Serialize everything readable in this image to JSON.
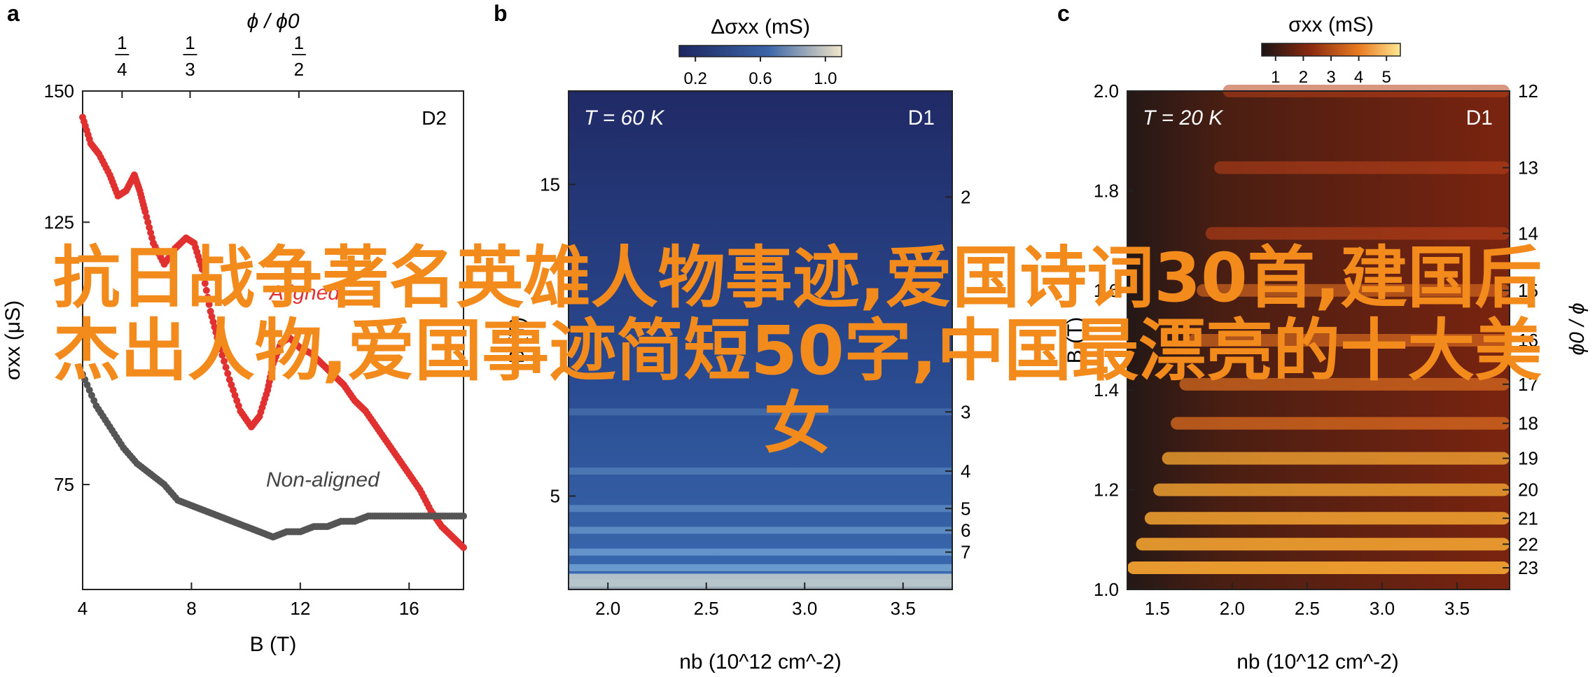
{
  "overlay": {
    "line1": "抗日战争著名英雄人物事迹,爱国诗词30首,建国后",
    "line2": "杰出人物,爱国事迹简短50字,中国最漂亮的十大美",
    "line3": "女"
  },
  "chart_data": [
    {
      "panel": "a",
      "type": "scatter",
      "title": "",
      "corner_label": "D2",
      "xlabel": "B (T)",
      "ylabel": "σxx (μS)",
      "top_axis_label": "ϕ / ϕ0",
      "top_ticks": [
        {
          "at_B": 5.45,
          "num": "1",
          "den": "4"
        },
        {
          "at_B": 7.95,
          "num": "1",
          "den": "3"
        },
        {
          "at_B": 11.95,
          "num": "1",
          "den": "2"
        }
      ],
      "xlim": [
        4,
        18
      ],
      "ylim": [
        55,
        150
      ],
      "xticks": [
        4,
        8,
        12,
        16
      ],
      "yticks": [
        75,
        125,
        150
      ],
      "series": [
        {
          "name": "Aligned",
          "color": "#e03030",
          "x": [
            4.0,
            4.3,
            4.6,
            5.0,
            5.3,
            5.6,
            5.9,
            6.1,
            6.3,
            6.6,
            7.0,
            7.4,
            7.8,
            8.1,
            8.4,
            8.7,
            9.0,
            9.4,
            9.8,
            10.2,
            10.5,
            10.8,
            11.0,
            11.3,
            11.6,
            12.0,
            12.4,
            12.8,
            13.2,
            13.6,
            14.0,
            14.4,
            14.8,
            15.2,
            15.6,
            16.0,
            16.4,
            16.8,
            17.2,
            17.6,
            18.0
          ],
          "y": [
            145,
            140,
            138,
            134,
            130,
            131,
            134,
            131,
            127,
            121,
            117,
            120,
            122,
            121,
            116,
            108,
            102,
            95,
            89,
            86,
            88,
            93,
            98,
            102,
            103,
            101,
            100,
            98,
            96,
            94,
            91,
            89,
            86,
            83,
            80,
            77,
            74,
            70,
            67,
            65,
            63
          ]
        },
        {
          "name": "Non-aligned",
          "color": "#555555",
          "x": [
            4.0,
            4.5,
            5.0,
            5.5,
            6.0,
            6.5,
            7.0,
            7.5,
            8.0,
            8.5,
            9.0,
            9.5,
            10.0,
            10.5,
            11.0,
            11.5,
            12.0,
            12.5,
            13.0,
            13.5,
            14.0,
            14.5,
            15.0,
            15.5,
            16.0,
            16.5,
            17.0,
            17.5,
            18.0
          ],
          "y": [
            96,
            90,
            86,
            82,
            79,
            77,
            75,
            72,
            71,
            70,
            69,
            68,
            67,
            66,
            65,
            66,
            66,
            67,
            67,
            68,
            68,
            69,
            69,
            69,
            69,
            69,
            69,
            69,
            69
          ]
        }
      ]
    },
    {
      "panel": "b",
      "type": "heatmap",
      "corner_label_left": "T = 60 K",
      "corner_label_right": "D1",
      "xlabel": "nb (10^12 cm^-2)",
      "ylabel": "B (T)",
      "xlim": [
        1.8,
        3.75
      ],
      "ylim": [
        2,
        18
      ],
      "xticks": [
        2.0,
        2.5,
        3.0,
        3.5
      ],
      "yticks": [
        5,
        15
      ],
      "right_ticks": [
        {
          "label": "2",
          "at_B": 14.6
        },
        {
          "label": "3",
          "at_B": 7.7
        },
        {
          "label": "4",
          "at_B": 5.8
        },
        {
          "label": "5",
          "at_B": 4.6
        },
        {
          "label": "6",
          "at_B": 3.9
        },
        {
          "label": "7",
          "at_B": 3.2
        }
      ],
      "colorbar": {
        "label": "Δσxx (mS)",
        "min": 0.1,
        "max": 1.1,
        "ticks": [
          "0.2",
          "0.6",
          "1.0"
        ],
        "colors": [
          "#1d2660",
          "#3b66a8",
          "#f2e6c8"
        ]
      }
    },
    {
      "panel": "c",
      "type": "heatmap",
      "corner_label_left": "T = 20 K",
      "corner_label_right": "D1",
      "xlabel": "nb (10^12 cm^-2)",
      "ylabel": "B (T)",
      "right_axis_label": "ϕ0 / ϕ",
      "xlim": [
        1.3,
        3.85
      ],
      "ylim": [
        1.0,
        2.0
      ],
      "xticks": [
        1.5,
        2.0,
        2.5,
        3.0,
        3.5
      ],
      "yticks": [
        1.0,
        1.2,
        1.4,
        1.6,
        1.8,
        2.0
      ],
      "right_ticks": [
        "12",
        "13",
        "14",
        "15",
        "16",
        "17",
        "18",
        "19",
        "20",
        "21",
        "22",
        "23"
      ],
      "colorbar": {
        "label": "σxx (mS)",
        "min": 0.5,
        "max": 5.5,
        "ticks": [
          "1",
          "2",
          "3",
          "4",
          "5"
        ],
        "colors": [
          "#1a1414",
          "#8a2a10",
          "#e87a20",
          "#ffe890"
        ]
      }
    }
  ]
}
